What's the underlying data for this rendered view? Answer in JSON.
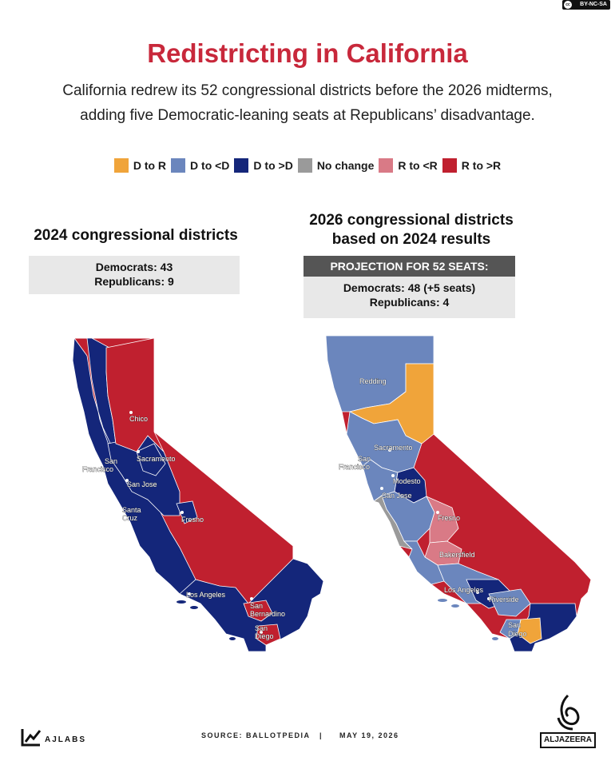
{
  "license": "BY-NC-SA",
  "title": "Redistricting in California",
  "subtitle_line1": "California redrew its 52 congressional districts before the 2026 midterms,",
  "subtitle_line2": "adding five Democratic-leaning seats at Republicans’ disadvantage.",
  "colors": {
    "d_to_r": "#f0a43a",
    "d_to_lt_d": "#6b86bd",
    "d_to_gt_d": "#14267a",
    "no_change": "#9a9a9a",
    "r_to_lt_r": "#d97a86",
    "r_to_gt_r": "#c0202f"
  },
  "legend": [
    {
      "label": "D to R",
      "color": "#f0a43a"
    },
    {
      "label": "D to <D",
      "color": "#6b86bd"
    },
    {
      "label": "D to >D",
      "color": "#14267a"
    },
    {
      "label": "No change",
      "color": "#9a9a9a"
    },
    {
      "label": "R to <R",
      "color": "#d97a86"
    },
    {
      "label": "R to >R",
      "color": "#c0202f"
    }
  ],
  "left_panel": {
    "heading": "2024 congressional districts",
    "democrats": "Democrats: 43",
    "republicans": "Republicans: 9",
    "cities": [
      "Chico",
      "Sacramento",
      "San",
      "Francisco",
      "San Jose",
      "Santa",
      "Cruz",
      "Fresno",
      "Los Angeles",
      "San",
      "Bernardino",
      "San",
      "Diego"
    ]
  },
  "right_panel": {
    "heading_line1": "2026 congressional districts",
    "heading_line2": "based on 2024 results",
    "projection_label": "PROJECTION FOR 52 SEATS:",
    "democrats": "Democrats: 48 (+5 seats)",
    "republicans": "Republicans: 4",
    "cities": [
      "Redding",
      "Sacramento",
      "San",
      "Francisco",
      "Modesto",
      "San Jose",
      "Fresno",
      "Bakersfield",
      "Los Angeles",
      "Riverside",
      "San",
      "Diego"
    ]
  },
  "footer": {
    "brand": "AJLABS",
    "source": "SOURCE:  BALLOTPEDIA",
    "divider": "|",
    "date": "MAY 19, 2026",
    "publisher": "ALJAZEERA"
  }
}
